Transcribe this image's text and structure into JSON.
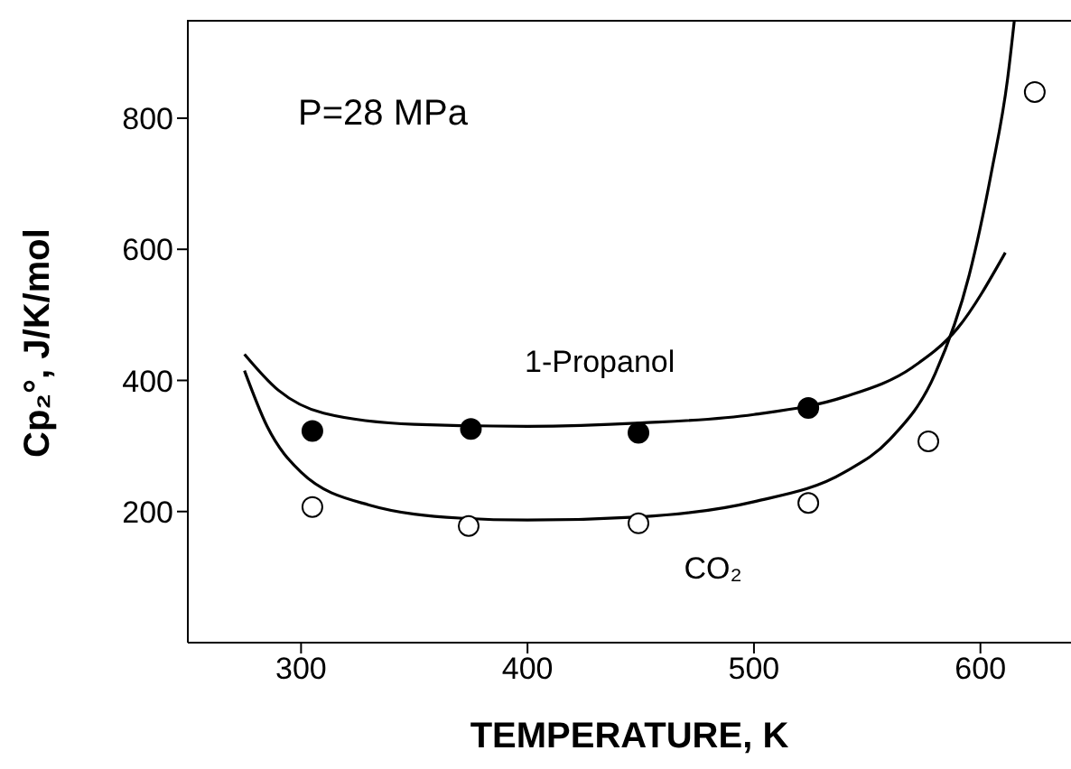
{
  "chart_data": {
    "type": "scatter",
    "xlabel": "TEMPERATURE, K",
    "ylabel": "Cp₂°, J/K/mol",
    "xlim": [
      250,
      640
    ],
    "xticks": [
      300,
      400,
      500,
      600
    ],
    "ylim": [
      0,
      950
    ],
    "yticks": [
      200,
      400,
      600,
      800
    ],
    "grid": false,
    "legend": false,
    "annotations": [
      "P=28 MPa"
    ],
    "series": [
      {
        "type": "line",
        "name": "1-Propanol",
        "marker": "none",
        "color": "#000000",
        "x": [
          275,
          290,
          310,
          350,
          400,
          450,
          500,
          540,
          570,
          590,
          611
        ],
        "values": [
          440,
          385,
          350,
          333,
          330,
          335,
          348,
          375,
          420,
          480,
          595
        ]
      },
      {
        "marker": "circle",
        "color": "#000000",
        "x": [
          305,
          375,
          449,
          524
        ],
        "values": [
          323,
          326,
          320,
          358
        ]
      },
      {
        "type": "line",
        "name": "CO₂",
        "marker": "none",
        "color": "#000000",
        "x": [
          275,
          285,
          300,
          330,
          370,
          400,
          450,
          500,
          540,
          560,
          580,
          595,
          605,
          612,
          615
        ],
        "values": [
          415,
          330,
          260,
          210,
          190,
          187,
          192,
          215,
          260,
          310,
          410,
          560,
          720,
          860,
          950
        ]
      },
      {
        "marker": "circle",
        "color": "#ffffff",
        "x": [
          305,
          374,
          449,
          524,
          577,
          624
        ],
        "values": [
          207,
          178,
          182,
          213,
          307,
          840
        ]
      }
    ]
  }
}
